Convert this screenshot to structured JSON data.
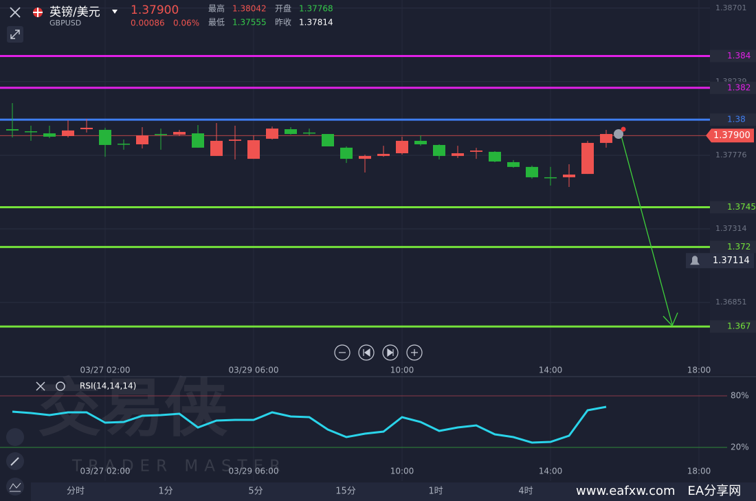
{
  "header": {
    "pair_name": "英镑/美元",
    "symbol": "GBPUSD",
    "price": "1.37900",
    "change": "0.00086",
    "change_pct": "0.06%",
    "stats": [
      {
        "label": "最高",
        "value": "1.38042",
        "color": "#f0544f"
      },
      {
        "label": "开盘",
        "value": "1.37768",
        "color": "#35c94a"
      },
      {
        "label": "最低",
        "value": "1.37555",
        "color": "#35c94a"
      },
      {
        "label": "昨收",
        "value": "1.37814",
        "color": "#ffffff"
      }
    ]
  },
  "price_chart": {
    "ylim": [
      1.36463,
      1.38752
    ],
    "yticks": [
      1.38701,
      1.38239,
      1.37776,
      1.37314,
      1.36851
    ],
    "time_labels": [
      "03/27 02:00",
      "03/29 06:00",
      "10:00",
      "14:00",
      "18:00"
    ],
    "up_color": "#ef5350",
    "down_color": "#26b43b",
    "candles": {
      "open": [
        1.3794,
        1.37927,
        1.37914,
        1.37897,
        1.3794,
        1.37936,
        1.37849,
        1.37845,
        1.3791,
        1.37906,
        1.37914,
        1.37772,
        1.37867,
        1.37754,
        1.3788,
        1.3794,
        1.37919,
        1.3791,
        1.37824,
        1.37754,
        1.37772,
        1.37789,
        1.37867,
        1.37841,
        1.37772,
        1.37798,
        1.37798,
        1.37733,
        1.37703,
        1.37638,
        1.37638,
        1.37659,
        1.37854
      ],
      "high": [
        1.38104,
        1.37962,
        1.37962,
        1.37996,
        1.38005,
        1.37949,
        1.37875,
        1.37953,
        1.37944,
        1.37936,
        1.37966,
        1.37979,
        1.37962,
        1.37901,
        1.37957,
        1.37953,
        1.37944,
        1.3791,
        1.37832,
        1.3778,
        1.37836,
        1.37893,
        1.37901,
        1.37845,
        1.37836,
        1.37823,
        1.37802,
        1.37746,
        1.37711,
        1.37703,
        1.3772,
        1.37867,
        1.37936
      ],
      "low": [
        1.37888,
        1.37867,
        1.37884,
        1.37888,
        1.37919,
        1.37767,
        1.37811,
        1.37819,
        1.37811,
        1.37897,
        1.37824,
        1.37772,
        1.3775,
        1.37754,
        1.37875,
        1.37906,
        1.37901,
        1.37832,
        1.37728,
        1.37668,
        1.37767,
        1.3778,
        1.37836,
        1.3775,
        1.37759,
        1.37754,
        1.37733,
        1.37698,
        1.37629,
        1.37586,
        1.37577,
        1.37659,
        1.37824
      ],
      "close": [
        1.37932,
        1.37923,
        1.37893,
        1.37932,
        1.37949,
        1.37841,
        1.37845,
        1.37901,
        1.37906,
        1.37923,
        1.37824,
        1.37867,
        1.37875,
        1.37871,
        1.37944,
        1.3791,
        1.37915,
        1.37832,
        1.37754,
        1.37772,
        1.37785,
        1.37867,
        1.37845,
        1.37772,
        1.37789,
        1.37806,
        1.37737,
        1.37703,
        1.37638,
        1.37634,
        1.37655,
        1.37854,
        1.3791
      ]
    },
    "levels": [
      {
        "value": 1.384,
        "color": "#e020e6"
      },
      {
        "value": 1.382,
        "color": "#e020e6"
      },
      {
        "value": 1.38,
        "color": "#3f7ef2"
      },
      {
        "value": 1.3745,
        "color": "#74e23a"
      },
      {
        "value": 1.372,
        "color": "#74e23a"
      },
      {
        "value": 1.367,
        "color": "#74e23a"
      }
    ],
    "last_price": {
      "value": 1.379,
      "label": "1.37900",
      "color": "#ef5350"
    },
    "alert": 1.37114
  },
  "rsi": {
    "label": "RSI(14,14,14)",
    "ylim": [
      -19.2,
      102.4
    ],
    "color": "#2ad4ea",
    "ticks": [
      {
        "value": 80,
        "label": "80%"
      },
      {
        "value": 20,
        "label": "20%"
      }
    ],
    "values": [
      61.6,
      60,
      57.6,
      60.8,
      60.8,
      48.8,
      49.6,
      56.8,
      57.6,
      59.2,
      43.2,
      51.2,
      52,
      52,
      60.8,
      56,
      55.2,
      40.8,
      32,
      36,
      38.4,
      55.2,
      49.6,
      39.2,
      43.2,
      45.6,
      35.2,
      32,
      25.6,
      26.4,
      33.6,
      63.2,
      67.2
    ],
    "time_labels": [
      "03/27 02:00",
      "03/29 06:00",
      "10:00",
      "14:00",
      "18:00"
    ]
  },
  "tabs": [
    "分时",
    "1分",
    "5分",
    "15分",
    "1时",
    "4时"
  ],
  "watermark": {
    "brand": "交易侠",
    "brand_en": "TRADER MASTER"
  },
  "site": "www.eafxw.com　EA分享网"
}
